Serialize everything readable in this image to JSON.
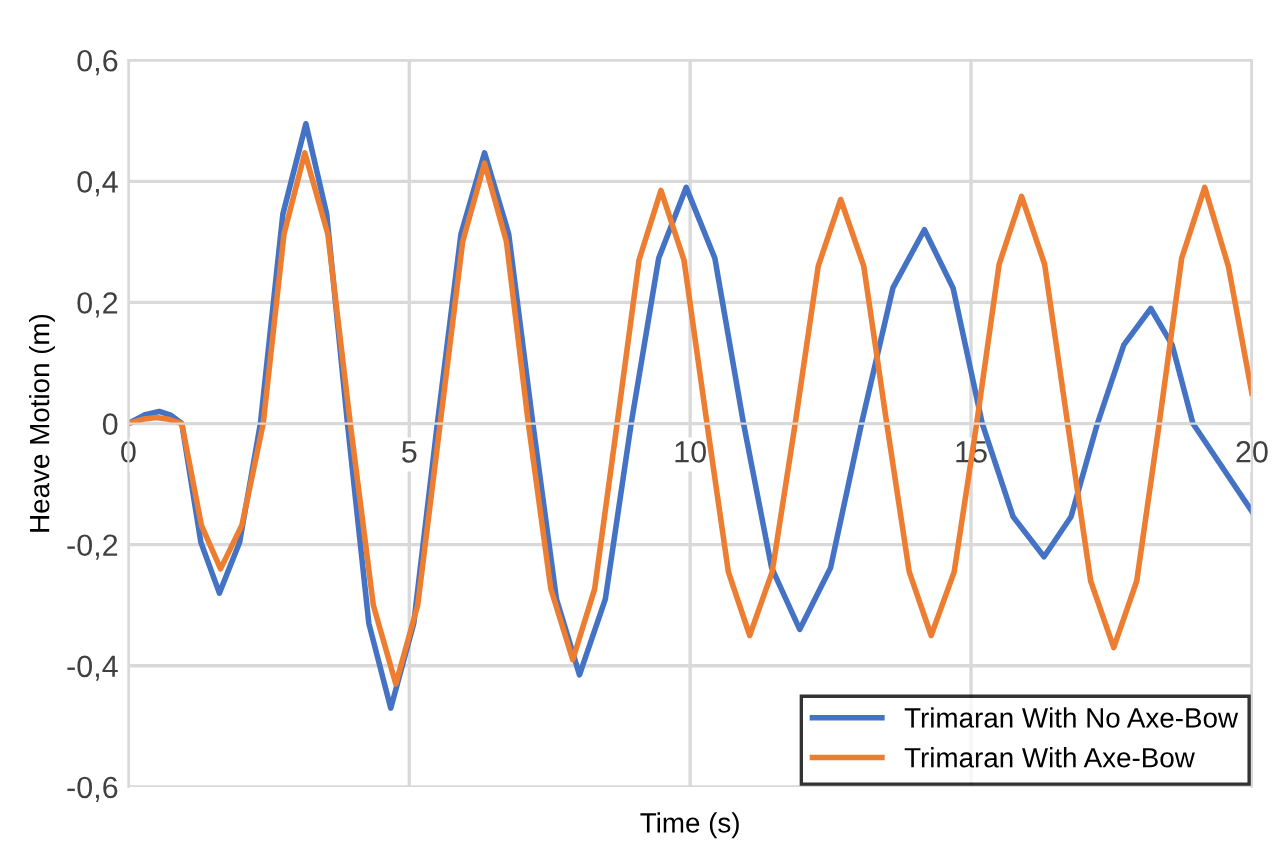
{
  "chart_data": {
    "type": "line",
    "xlabel": "Time (s)",
    "ylabel": "Heave Motion (m)",
    "xlim": [
      0,
      20
    ],
    "xticks": [
      0,
      5,
      10,
      15,
      20
    ],
    "ylim": [
      -0.6,
      0.6
    ],
    "yticks": [
      {
        "value": -0.6,
        "label": "-0,6"
      },
      {
        "value": -0.4,
        "label": "-0,4"
      },
      {
        "value": -0.2,
        "label": "-0,2"
      },
      {
        "value": 0,
        "label": "0"
      },
      {
        "value": 0.2,
        "label": "0,2"
      },
      {
        "value": 0.4,
        "label": "0,4"
      },
      {
        "value": 0.6,
        "label": "0,6"
      }
    ],
    "grid": true,
    "legend": "bottom right",
    "marker": "none",
    "line_style": "solid",
    "series": [
      {
        "name": "Trimaran With No Axe-Bow",
        "color": "#4472c4",
        "x": [
          0,
          0.28,
          0.55,
          0.75,
          0.95,
          1.29,
          1.62,
          1.98,
          2.35,
          2.75,
          3.16,
          3.53,
          3.9,
          4.28,
          4.67,
          5.08,
          5.5,
          5.92,
          6.34,
          6.77,
          7.2,
          7.62,
          8.03,
          8.49,
          8.95,
          9.44,
          9.93,
          10.44,
          10.95,
          11.45,
          11.95,
          12.5,
          13.05,
          13.61,
          14.17,
          14.68,
          15.2,
          15.75,
          16.3,
          16.78,
          17.25,
          17.72,
          18.2,
          18.58,
          18.95,
          20
        ],
        "values": [
          0,
          0.014,
          0.02,
          0.014,
          0,
          -0.196,
          -0.28,
          -0.196,
          0,
          0.346,
          0.495,
          0.346,
          0,
          -0.33,
          -0.47,
          -0.33,
          0,
          0.313,
          0.447,
          0.313,
          0,
          -0.29,
          -0.415,
          -0.29,
          0,
          0.273,
          0.39,
          0.273,
          0,
          -0.238,
          -0.34,
          -0.238,
          0,
          0.224,
          0.32,
          0.224,
          0,
          -0.154,
          -0.22,
          -0.154,
          0,
          0.13,
          0.19,
          0.13,
          0,
          -0.145
        ]
      },
      {
        "name": "Trimaran With Axe-Bow",
        "color": "#ed7d31",
        "x": [
          0,
          0.25,
          0.5,
          0.72,
          0.95,
          1.3,
          1.64,
          2.02,
          2.4,
          2.77,
          3.14,
          3.55,
          3.95,
          4.36,
          4.76,
          5.15,
          5.55,
          5.95,
          6.34,
          6.73,
          7.12,
          7.52,
          7.91,
          8.3,
          8.7,
          9.09,
          9.48,
          9.89,
          10.3,
          10.68,
          11.06,
          11.46,
          11.87,
          12.28,
          12.68,
          13.09,
          13.5,
          13.9,
          14.29,
          14.7,
          15.1,
          15.5,
          15.9,
          16.31,
          16.72,
          17.13,
          17.54,
          17.95,
          18.35,
          18.75,
          19.16,
          19.58,
          20
        ],
        "values": [
          0,
          0.007,
          0.01,
          0.007,
          0,
          -0.168,
          -0.24,
          -0.168,
          0,
          0.313,
          0.447,
          0.313,
          0,
          -0.3,
          -0.43,
          -0.3,
          0,
          0.3,
          0.43,
          0.3,
          0,
          -0.273,
          -0.39,
          -0.273,
          0,
          0.27,
          0.385,
          0.27,
          0,
          -0.245,
          -0.35,
          -0.245,
          0,
          0.26,
          0.37,
          0.26,
          0,
          -0.245,
          -0.35,
          -0.245,
          0,
          0.263,
          0.375,
          0.263,
          0,
          -0.26,
          -0.37,
          -0.26,
          0,
          0.273,
          0.39,
          0.26,
          0.05
        ]
      }
    ]
  }
}
